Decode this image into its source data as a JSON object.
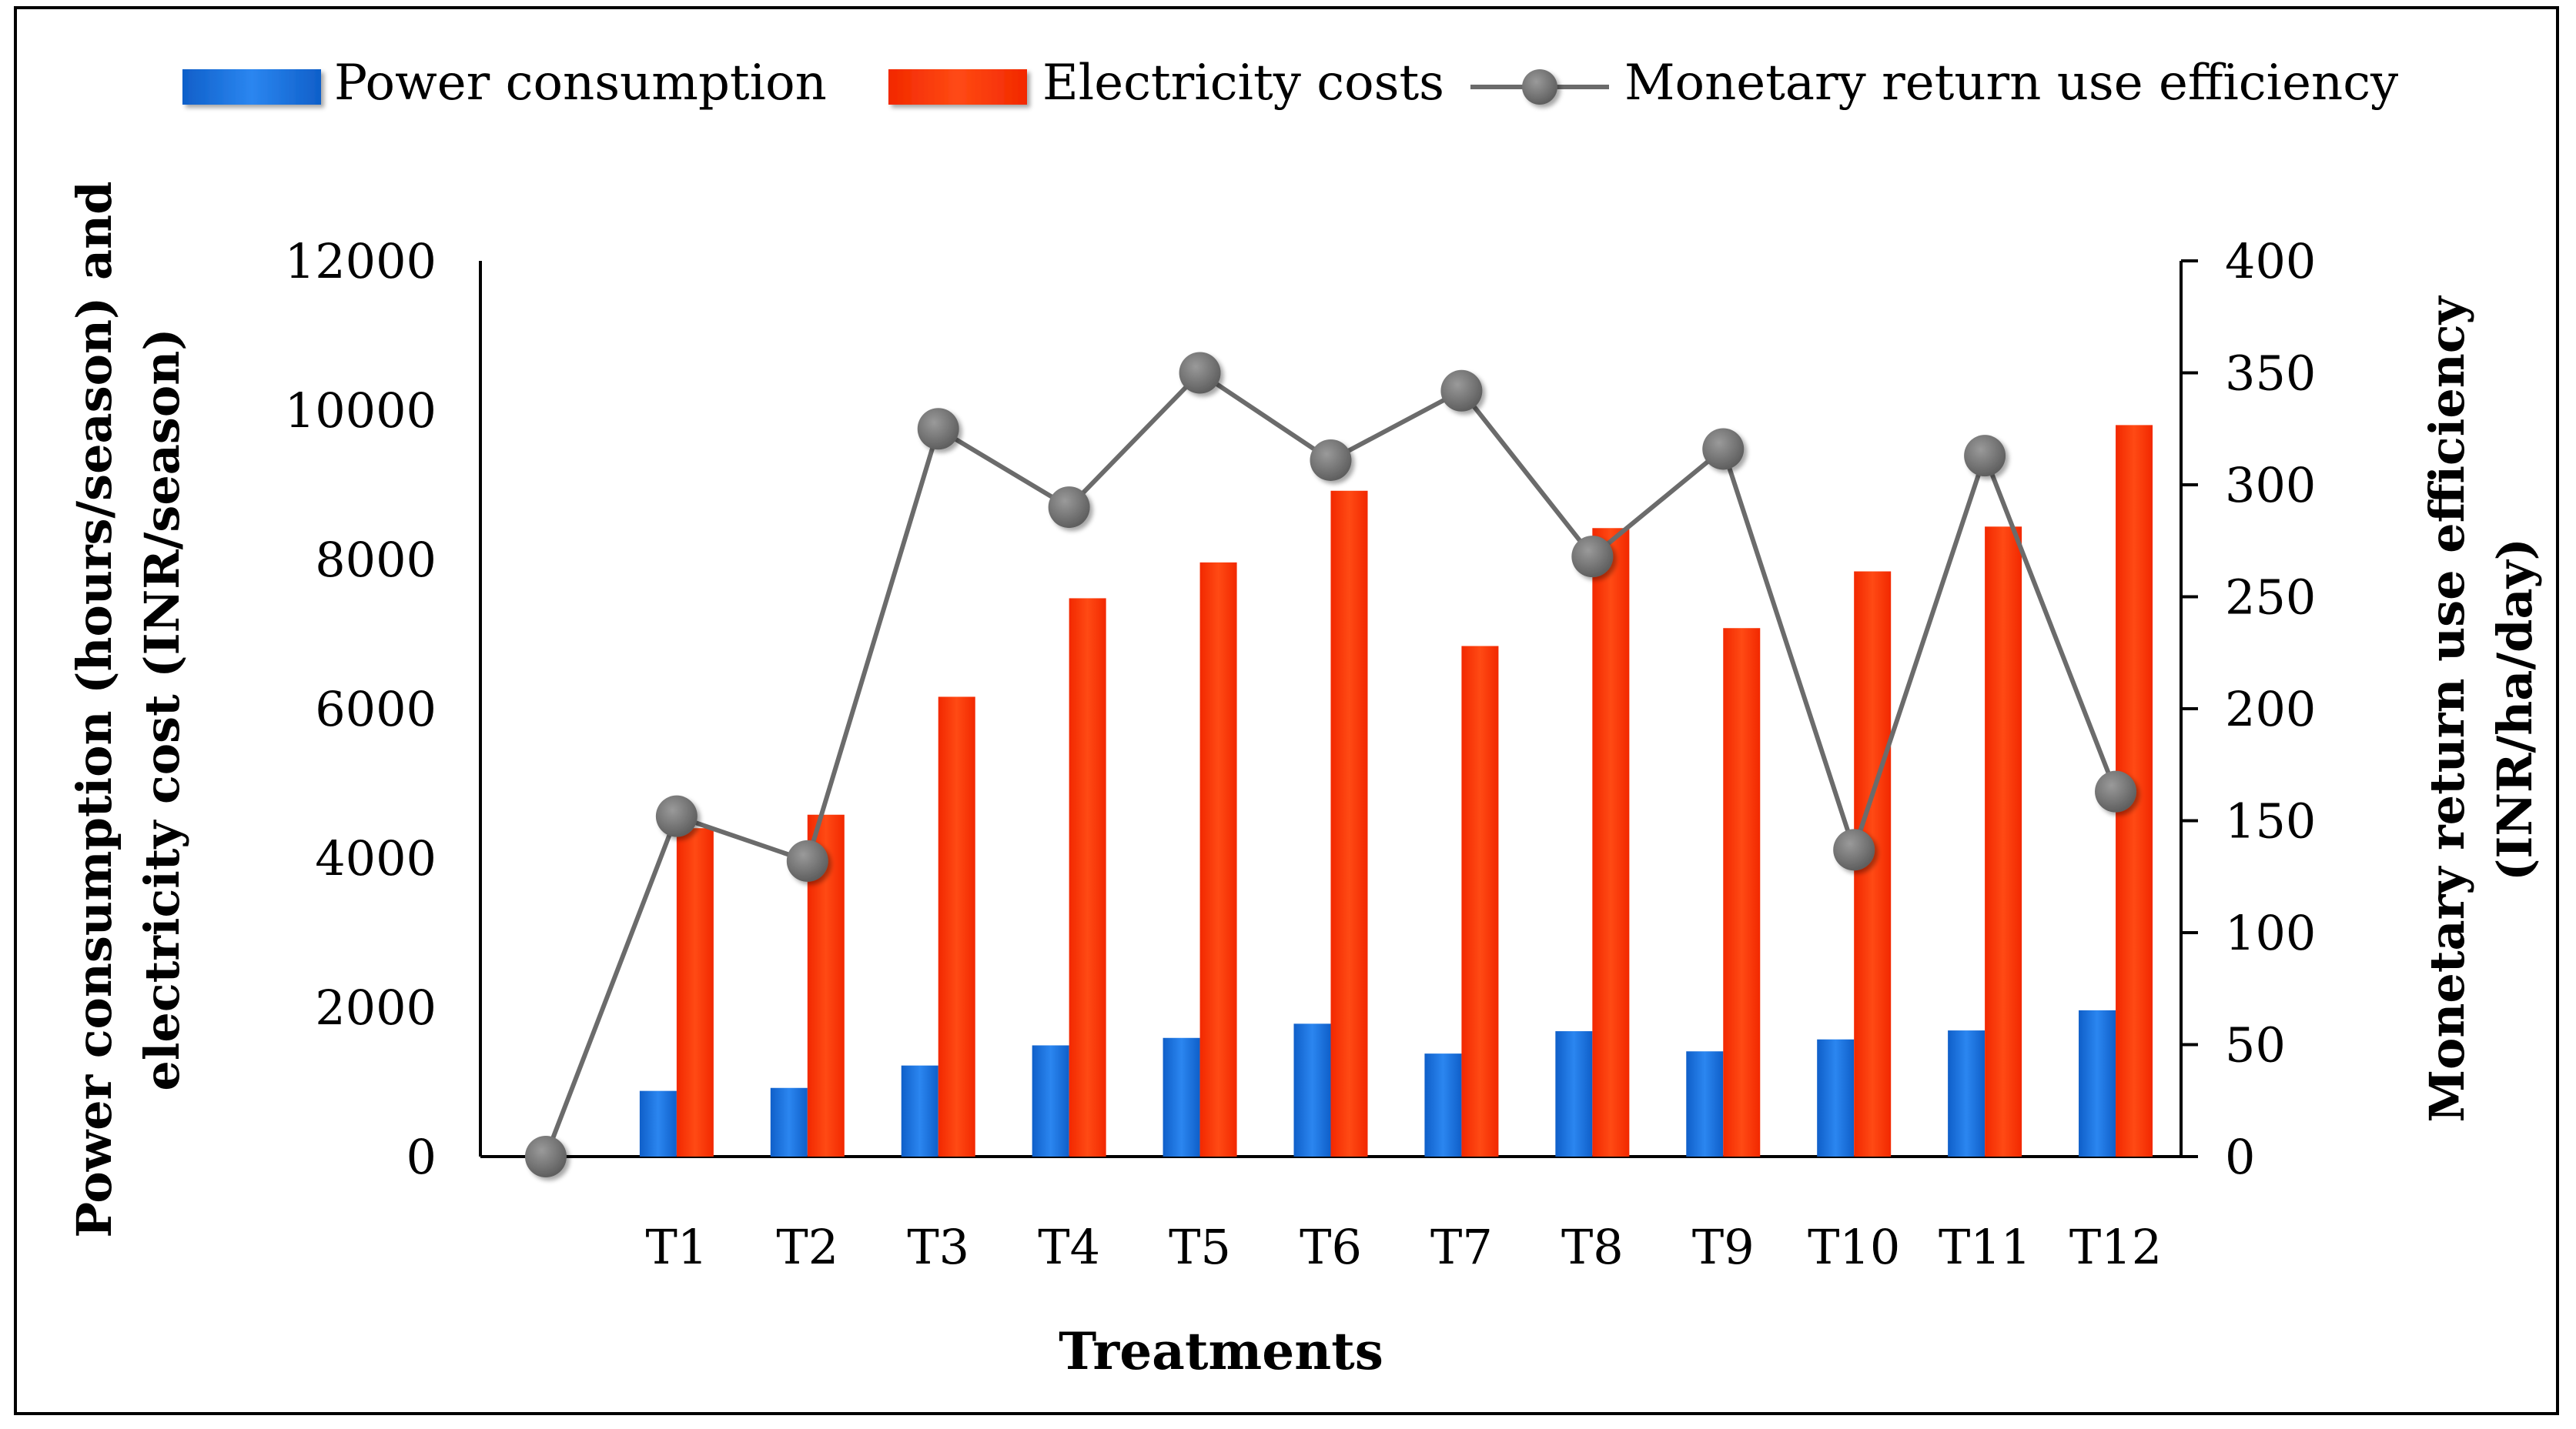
{
  "chart_data": {
    "type": "bar",
    "title": "",
    "categories": [
      "",
      "T1",
      "T2",
      "T3",
      "T4",
      "T5",
      "T6",
      "T7",
      "T8",
      "T9",
      "T10",
      "T11",
      "T12"
    ],
    "series": [
      {
        "name": "Power consumption",
        "kind": "bar",
        "axis": "left",
        "color": "#1b6fd8",
        "values": [
          null,
          880,
          920,
          1220,
          1490,
          1590,
          1780,
          1380,
          1680,
          1410,
          1570,
          1690,
          1960
        ]
      },
      {
        "name": "Electricity costs",
        "kind": "bar",
        "axis": "left",
        "color": "#ff2a00",
        "values": [
          null,
          4400,
          4580,
          6160,
          7480,
          7960,
          8920,
          6840,
          8420,
          7080,
          7840,
          8440,
          9800
        ]
      },
      {
        "name": "Monetary return use efficiency",
        "kind": "line",
        "axis": "right",
        "color": "#6b6b6b",
        "values": [
          0,
          152,
          132,
          325,
          290,
          350,
          311,
          342,
          268,
          316,
          137,
          313,
          163
        ]
      }
    ],
    "xlabel": "Treatments",
    "ylabel": "Power consumption (hours/season) and electricity cost (INR/season)",
    "ylabel_lines": [
      "Power consumption (hours/season) and",
      "electricity cost (INR/season)"
    ],
    "y2label": "Monetary return use efficiency (INR/ha/day)",
    "y2label_lines": [
      "Monetary return use efficiency",
      "(INR/ha/day)"
    ],
    "ylim": [
      0,
      12000
    ],
    "yticks": [
      0,
      2000,
      4000,
      6000,
      8000,
      10000,
      12000
    ],
    "y2lim": [
      0,
      400
    ],
    "y2ticks": [
      0,
      50,
      100,
      150,
      200,
      250,
      300,
      350,
      400
    ],
    "legend_position": "top",
    "grid": false
  }
}
